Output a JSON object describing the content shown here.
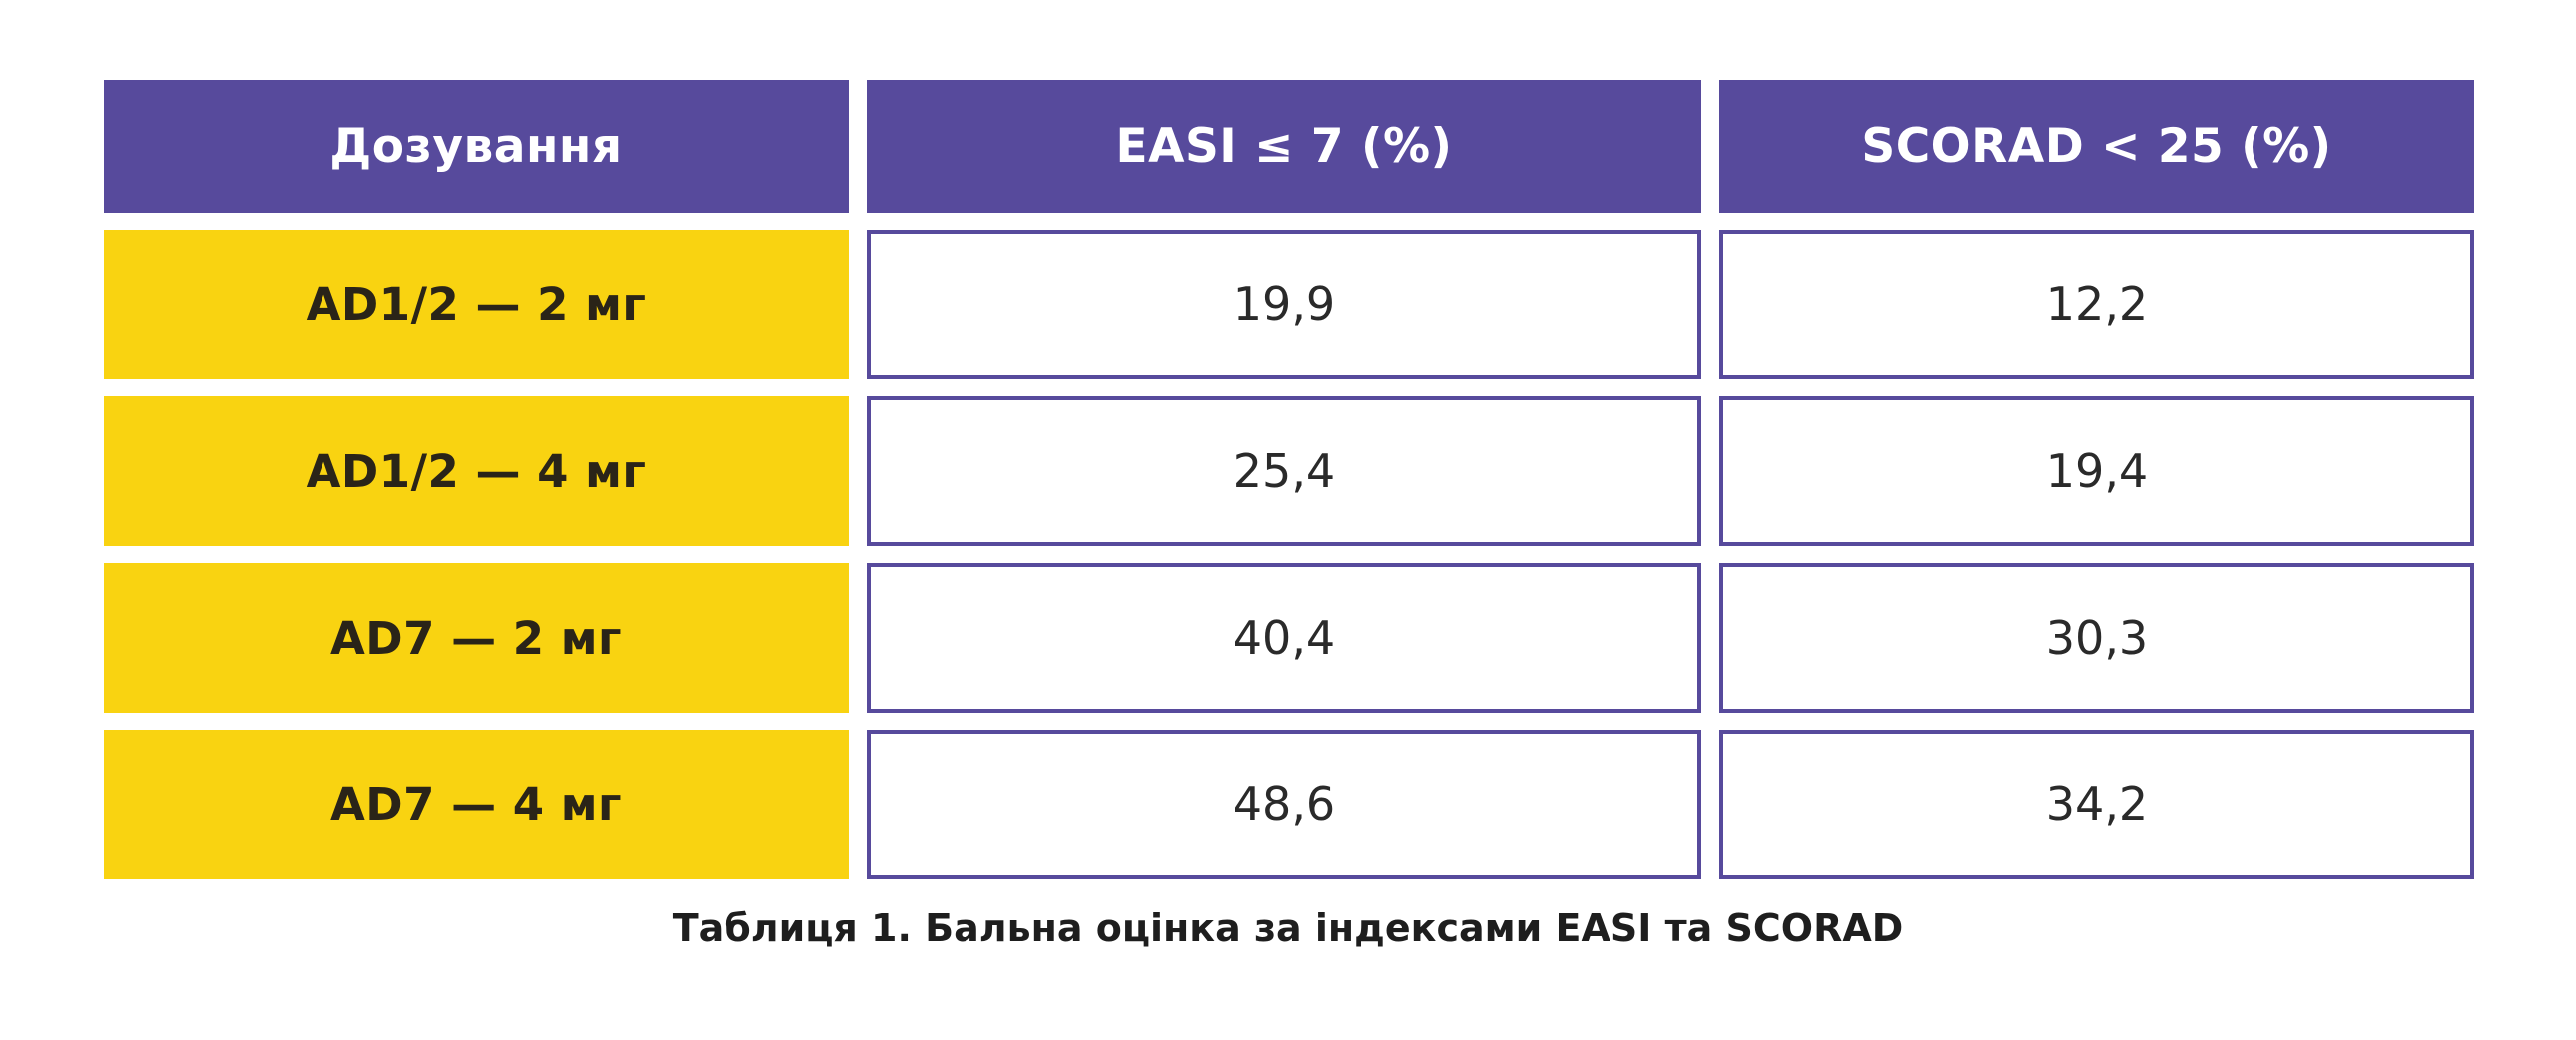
{
  "table": {
    "headers": [
      "Дозування",
      "EASI ≤ 7 (%)",
      "SCORAD < 25 (%)"
    ],
    "rows": [
      {
        "dose": "AD1/2 — 2 мг",
        "easi": "19,9",
        "scorad": "12,2"
      },
      {
        "dose": "AD1/2 — 4 мг",
        "easi": "25,4",
        "scorad": "19,4"
      },
      {
        "dose": "AD7 — 2 мг",
        "easi": "40,4",
        "scorad": "30,3"
      },
      {
        "dose": "AD7 — 4 мг",
        "easi": "48,6",
        "scorad": "34,2"
      }
    ]
  },
  "caption": "Таблиця 1. Бальна оцінка за індексами EASI та SCORAD",
  "colors": {
    "header_bg": "#574A9C",
    "dose_bg": "#F9D311",
    "border": "#574A9C"
  }
}
